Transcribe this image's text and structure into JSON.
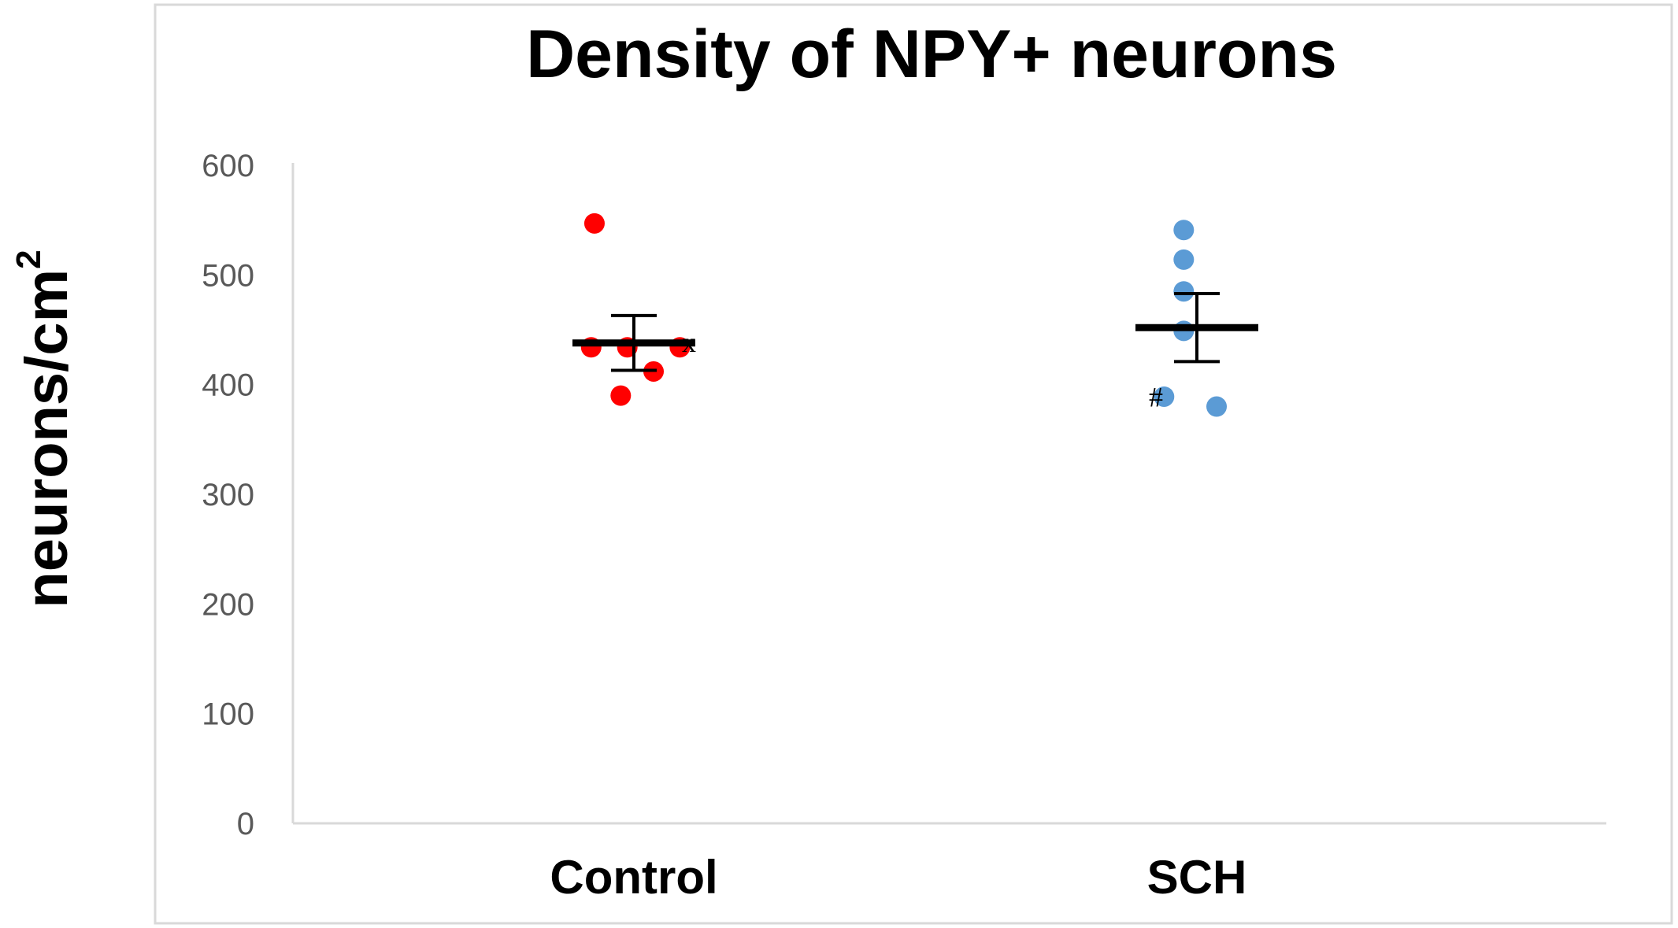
{
  "chart_data": {
    "type": "scatter",
    "title": "Density of NPY+ neurons",
    "ylabel": "neurons/cm",
    "ylabel_superscript": "2",
    "xlabel": "",
    "ylim": [
      0,
      600
    ],
    "yticks": [
      "0",
      "100",
      "200",
      "300",
      "400",
      "500",
      "600"
    ],
    "categories": [
      "Control",
      "SCH"
    ],
    "grid": false,
    "legend": "none",
    "series": [
      {
        "category": "Control",
        "color": "#ff0000",
        "points": [
          {
            "offset": -0.06,
            "y": 547
          },
          {
            "offset": -0.065,
            "y": 434
          },
          {
            "offset": -0.01,
            "y": 434
          },
          {
            "offset": 0.07,
            "y": 434
          },
          {
            "offset": 0.03,
            "y": 412
          },
          {
            "offset": -0.02,
            "y": 390
          }
        ],
        "mean": 438,
        "error": 25,
        "annotation": "x"
      },
      {
        "category": "SCH",
        "color": "#5b9bd5",
        "points": [
          {
            "offset": -0.02,
            "y": 541
          },
          {
            "offset": -0.02,
            "y": 514
          },
          {
            "offset": -0.02,
            "y": 485
          },
          {
            "offset": -0.02,
            "y": 449
          },
          {
            "offset": -0.05,
            "y": 389
          },
          {
            "offset": 0.03,
            "y": 380
          }
        ],
        "mean": 452,
        "error": 31,
        "annotation": "#"
      }
    ]
  }
}
